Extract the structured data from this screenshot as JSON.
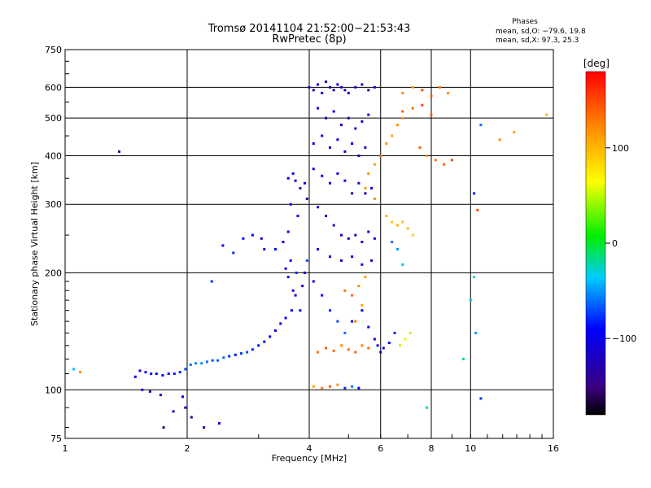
{
  "chart_data": {
    "type": "scatter",
    "title": "Tromsø 20141104 21:52:00−21:53:43",
    "subtitle": "RwPretec (8p)",
    "xlabel": "Frequency [MHz]",
    "ylabel": "Stationary phase Virtual Height [km]",
    "xscale": "log",
    "yscale": "log",
    "xlim": [
      1,
      16
    ],
    "ylim": [
      75,
      750
    ],
    "x_ticks": [
      1,
      2,
      4,
      6,
      8,
      10,
      16
    ],
    "x_tick_labels": [
      "1",
      "2",
      "4",
      "6",
      "8",
      "10",
      "16"
    ],
    "y_ticks": [
      75,
      100,
      200,
      300,
      400,
      500,
      600,
      750
    ],
    "y_tick_labels": [
      "75",
      "100",
      "200",
      "300",
      "400",
      "500",
      "600",
      "750"
    ],
    "grid": true,
    "colorbar": {
      "label": "[deg]",
      "range": [
        -180,
        180
      ],
      "ticks": [
        100,
        0,
        -100
      ],
      "tick_labels": [
        "100",
        "0",
        "−100"
      ],
      "colormap": "rainbow"
    },
    "phases_box": {
      "title": "Phases",
      "line1": "mean, sd,O: −79.6, 19.8",
      "line2": "mean, sd,X: 97.3, 25.3"
    },
    "series": [
      {
        "name": "echo points",
        "points": [
          [
            1.05,
            113,
            -40
          ],
          [
            1.09,
            111,
            120
          ],
          [
            1.36,
            410,
            -140
          ],
          [
            1.49,
            108,
            -100
          ],
          [
            1.53,
            112,
            -95
          ],
          [
            1.58,
            111,
            -90
          ],
          [
            1.63,
            110,
            -100
          ],
          [
            1.68,
            110,
            -105
          ],
          [
            1.74,
            109,
            -95
          ],
          [
            1.8,
            110,
            -90
          ],
          [
            1.86,
            110,
            -85
          ],
          [
            1.92,
            111,
            -80
          ],
          [
            1.98,
            113,
            -70
          ],
          [
            2.04,
            116,
            -60
          ],
          [
            2.1,
            117,
            -55
          ],
          [
            2.17,
            117,
            -50
          ],
          [
            2.24,
            118,
            -60
          ],
          [
            2.31,
            119,
            -70
          ],
          [
            2.38,
            119,
            -65
          ],
          [
            2.46,
            121,
            -60
          ],
          [
            2.54,
            122,
            -80
          ],
          [
            2.63,
            123,
            -85
          ],
          [
            2.72,
            124,
            -75
          ],
          [
            2.81,
            125,
            -70
          ],
          [
            2.9,
            127,
            -80
          ],
          [
            3.0,
            130,
            -85
          ],
          [
            3.1,
            133,
            -90
          ],
          [
            3.2,
            137,
            -100
          ],
          [
            3.3,
            142,
            -105
          ],
          [
            3.4,
            148,
            -95
          ],
          [
            3.5,
            153,
            -90
          ],
          [
            3.62,
            160,
            -100
          ],
          [
            1.55,
            100,
            -100
          ],
          [
            1.62,
            99,
            -110
          ],
          [
            1.72,
            97,
            -120
          ],
          [
            1.85,
            88,
            -120
          ],
          [
            1.95,
            96,
            -95
          ],
          [
            1.98,
            90,
            -110
          ],
          [
            2.05,
            85,
            -130
          ],
          [
            2.2,
            80,
            -120
          ],
          [
            2.4,
            82,
            -110
          ],
          [
            1.75,
            80,
            -150
          ],
          [
            2.3,
            190,
            -80
          ],
          [
            2.45,
            235,
            -90
          ],
          [
            2.6,
            225,
            -80
          ],
          [
            2.75,
            245,
            -90
          ],
          [
            2.9,
            250,
            -100
          ],
          [
            3.05,
            245,
            -110
          ],
          [
            3.1,
            230,
            -100
          ],
          [
            3.3,
            230,
            -90
          ],
          [
            3.45,
            240,
            -100
          ],
          [
            3.55,
            255,
            -90
          ],
          [
            3.5,
            205,
            -100
          ],
          [
            3.55,
            195,
            -110
          ],
          [
            3.6,
            215,
            -90
          ],
          [
            3.65,
            180,
            -100
          ],
          [
            3.7,
            175,
            -120
          ],
          [
            3.72,
            200,
            -80
          ],
          [
            3.8,
            160,
            -90
          ],
          [
            3.85,
            185,
            -100
          ],
          [
            3.9,
            200,
            -110
          ],
          [
            3.95,
            215,
            -70
          ],
          [
            3.55,
            350,
            -100
          ],
          [
            3.65,
            360,
            -90
          ],
          [
            3.7,
            345,
            -120
          ],
          [
            3.8,
            330,
            -130
          ],
          [
            3.9,
            340,
            -100
          ],
          [
            3.95,
            310,
            -110
          ],
          [
            3.6,
            300,
            -90
          ],
          [
            3.75,
            280,
            -100
          ],
          [
            4.0,
            600,
            -120
          ],
          [
            4.1,
            590,
            -130
          ],
          [
            4.2,
            610,
            -110
          ],
          [
            4.3,
            580,
            -120
          ],
          [
            4.4,
            620,
            -140
          ],
          [
            4.5,
            600,
            -130
          ],
          [
            4.6,
            590,
            -120
          ],
          [
            4.7,
            610,
            -100
          ],
          [
            4.8,
            600,
            -130
          ],
          [
            4.9,
            590,
            -120
          ],
          [
            5.0,
            580,
            -110
          ],
          [
            5.2,
            600,
            -120
          ],
          [
            5.4,
            610,
            -130
          ],
          [
            5.6,
            590,
            -140
          ],
          [
            5.8,
            600,
            -100
          ],
          [
            4.2,
            530,
            -110
          ],
          [
            4.4,
            500,
            -120
          ],
          [
            4.6,
            520,
            -100
          ],
          [
            4.8,
            480,
            -110
          ],
          [
            5.0,
            500,
            -120
          ],
          [
            5.2,
            470,
            -100
          ],
          [
            5.4,
            490,
            -120
          ],
          [
            5.6,
            510,
            -110
          ],
          [
            4.1,
            430,
            -100
          ],
          [
            4.3,
            450,
            -110
          ],
          [
            4.5,
            420,
            -120
          ],
          [
            4.7,
            440,
            -100
          ],
          [
            4.9,
            410,
            -110
          ],
          [
            5.1,
            430,
            -90
          ],
          [
            5.3,
            400,
            -110
          ],
          [
            5.5,
            420,
            -120
          ],
          [
            4.1,
            370,
            -100
          ],
          [
            4.3,
            355,
            -110
          ],
          [
            4.5,
            340,
            -120
          ],
          [
            4.7,
            360,
            -100
          ],
          [
            4.9,
            345,
            -110
          ],
          [
            5.1,
            320,
            -130
          ],
          [
            5.3,
            340,
            -120
          ],
          [
            5.5,
            320,
            -110
          ],
          [
            5.7,
            330,
            -100
          ],
          [
            4.2,
            295,
            -110
          ],
          [
            4.4,
            280,
            -100
          ],
          [
            4.6,
            265,
            -120
          ],
          [
            4.8,
            250,
            -110
          ],
          [
            5.0,
            245,
            -130
          ],
          [
            5.2,
            250,
            -120
          ],
          [
            5.4,
            240,
            -110
          ],
          [
            5.6,
            255,
            -120
          ],
          [
            5.8,
            245,
            -100
          ],
          [
            4.2,
            230,
            -110
          ],
          [
            4.5,
            220,
            -120
          ],
          [
            4.8,
            215,
            -110
          ],
          [
            5.1,
            220,
            -100
          ],
          [
            5.4,
            210,
            -130
          ],
          [
            5.7,
            215,
            -120
          ],
          [
            4.1,
            190,
            -100
          ],
          [
            4.3,
            175,
            -90
          ],
          [
            4.5,
            160,
            -80
          ],
          [
            4.7,
            150,
            -70
          ],
          [
            4.9,
            140,
            -60
          ],
          [
            5.1,
            150,
            -90
          ],
          [
            5.4,
            160,
            -100
          ],
          [
            5.6,
            145,
            -110
          ],
          [
            5.8,
            135,
            -100
          ],
          [
            6.0,
            125,
            -110
          ],
          [
            4.2,
            125,
            130
          ],
          [
            4.4,
            128,
            140
          ],
          [
            4.6,
            126,
            135
          ],
          [
            4.8,
            130,
            120
          ],
          [
            5.0,
            127,
            130
          ],
          [
            5.2,
            125,
            140
          ],
          [
            5.4,
            130,
            125
          ],
          [
            5.6,
            128,
            135
          ],
          [
            4.1,
            102,
            110
          ],
          [
            4.3,
            101,
            130
          ],
          [
            4.5,
            102,
            140
          ],
          [
            4.7,
            103,
            120
          ],
          [
            4.9,
            101,
            -80
          ],
          [
            5.1,
            102,
            -60
          ],
          [
            5.3,
            101,
            -90
          ],
          [
            5.9,
            130,
            -100
          ],
          [
            6.1,
            128,
            -110
          ],
          [
            6.3,
            132,
            -90
          ],
          [
            6.5,
            140,
            -80
          ],
          [
            6.7,
            130,
            50
          ],
          [
            6.9,
            135,
            60
          ],
          [
            7.1,
            140,
            50
          ],
          [
            4.9,
            180,
            130
          ],
          [
            5.1,
            175,
            140
          ],
          [
            5.3,
            185,
            120
          ],
          [
            5.5,
            195,
            110
          ],
          [
            5.2,
            150,
            130
          ],
          [
            5.4,
            165,
            110
          ],
          [
            5.6,
            360,
            120
          ],
          [
            5.8,
            380,
            110
          ],
          [
            6.0,
            400,
            130
          ],
          [
            6.2,
            430,
            120
          ],
          [
            6.4,
            450,
            110
          ],
          [
            6.6,
            480,
            120
          ],
          [
            6.8,
            500,
            115
          ],
          [
            5.5,
            330,
            110
          ],
          [
            5.8,
            310,
            120
          ],
          [
            6.2,
            280,
            100
          ],
          [
            6.4,
            270,
            90
          ],
          [
            6.6,
            265,
            100
          ],
          [
            6.8,
            270,
            95
          ],
          [
            7.0,
            260,
            100
          ],
          [
            7.2,
            250,
            90
          ],
          [
            6.4,
            240,
            -60
          ],
          [
            6.6,
            230,
            -50
          ],
          [
            6.8,
            210,
            -40
          ],
          [
            6.8,
            580,
            120
          ],
          [
            7.2,
            600,
            110
          ],
          [
            7.6,
            590,
            150
          ],
          [
            8.0,
            570,
            140
          ],
          [
            8.4,
            600,
            130
          ],
          [
            8.8,
            580,
            120
          ],
          [
            7.5,
            420,
            140
          ],
          [
            7.8,
            400,
            120
          ],
          [
            8.2,
            390,
            130
          ],
          [
            8.6,
            380,
            140
          ],
          [
            9.0,
            390,
            150
          ],
          [
            6.8,
            520,
            140
          ],
          [
            7.2,
            530,
            130
          ],
          [
            7.6,
            540,
            150
          ],
          [
            8.0,
            510,
            140
          ],
          [
            10.2,
            320,
            -80
          ],
          [
            10.6,
            480,
            -60
          ],
          [
            11.8,
            440,
            120
          ],
          [
            12.8,
            460,
            110
          ],
          [
            15.4,
            510,
            100
          ],
          [
            10.0,
            170,
            -40
          ],
          [
            10.2,
            195,
            -30
          ],
          [
            10.3,
            140,
            -50
          ],
          [
            10.6,
            95,
            -80
          ],
          [
            10.4,
            290,
            150
          ],
          [
            9.6,
            120,
            -20
          ],
          [
            7.8,
            90,
            -10
          ]
        ]
      }
    ]
  }
}
